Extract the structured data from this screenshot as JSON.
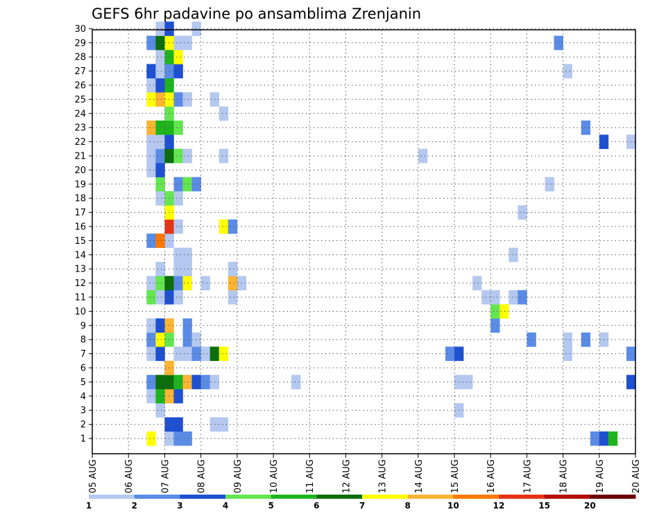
{
  "chart_data": {
    "type": "heatmap",
    "title": "GEFS 6hr padavine po ansamblima Zrenjanin",
    "ylabels": [
      "1",
      "2",
      "3",
      "4",
      "5",
      "6",
      "7",
      "8",
      "9",
      "10",
      "11",
      "12",
      "13",
      "14",
      "15",
      "16",
      "17",
      "18",
      "19",
      "20",
      "21",
      "22",
      "23",
      "24",
      "25",
      "26",
      "27",
      "28",
      "29",
      "30"
    ],
    "xlabels": [
      "05 AUG",
      "06 AUG",
      "07 AUG",
      "08 AUG",
      "09 AUG",
      "10 AUG",
      "11 AUG",
      "12 AUG",
      "13 AUG",
      "14 AUG",
      "15 AUG",
      "16 AUG",
      "17 AUG",
      "18 AUG",
      "19 AUG",
      "20 AUG"
    ],
    "steps_per_day": 4,
    "grid": "dotted",
    "colorbar": {
      "ticks": [
        "1",
        "2",
        "3",
        "4",
        "5",
        "6",
        "7",
        "8",
        "10",
        "12",
        "15",
        "20"
      ],
      "colors": [
        "#b4c8f0",
        "#5a8ce6",
        "#1e50d2",
        "#64e650",
        "#1eb41e",
        "#0a6e0a",
        "#ffff00",
        "#ffb432",
        "#ff7800",
        "#e63214",
        "#b40a0a",
        "#6e0000"
      ]
    },
    "cells": [
      [
        1,
        6,
        7
      ],
      [
        1,
        8,
        1
      ],
      [
        1,
        9,
        2
      ],
      [
        1,
        10,
        2
      ],
      [
        1,
        55,
        2
      ],
      [
        1,
        56,
        3
      ],
      [
        1,
        57,
        5
      ],
      [
        2,
        8,
        3
      ],
      [
        2,
        9,
        3
      ],
      [
        2,
        13,
        1
      ],
      [
        2,
        14,
        1
      ],
      [
        3,
        7,
        1
      ],
      [
        3,
        40,
        1
      ],
      [
        4,
        6,
        1
      ],
      [
        4,
        7,
        5
      ],
      [
        4,
        8,
        8
      ],
      [
        4,
        9,
        3
      ],
      [
        5,
        6,
        2
      ],
      [
        5,
        7,
        6
      ],
      [
        5,
        8,
        6
      ],
      [
        5,
        9,
        5
      ],
      [
        5,
        10,
        8
      ],
      [
        5,
        11,
        3
      ],
      [
        5,
        12,
        2
      ],
      [
        5,
        13,
        1
      ],
      [
        5,
        22,
        1
      ],
      [
        5,
        40,
        1
      ],
      [
        5,
        41,
        1
      ],
      [
        5,
        59,
        3
      ],
      [
        6,
        8,
        8
      ],
      [
        7,
        6,
        1
      ],
      [
        7,
        7,
        3
      ],
      [
        7,
        9,
        1
      ],
      [
        7,
        10,
        1
      ],
      [
        7,
        11,
        2
      ],
      [
        7,
        12,
        1
      ],
      [
        7,
        13,
        6
      ],
      [
        7,
        14,
        7
      ],
      [
        7,
        39,
        2
      ],
      [
        7,
        40,
        3
      ],
      [
        7,
        52,
        1
      ],
      [
        7,
        59,
        2
      ],
      [
        8,
        6,
        2
      ],
      [
        8,
        7,
        7
      ],
      [
        8,
        8,
        4
      ],
      [
        8,
        10,
        2
      ],
      [
        8,
        11,
        1
      ],
      [
        8,
        48,
        2
      ],
      [
        8,
        52,
        1
      ],
      [
        8,
        54,
        2
      ],
      [
        8,
        56,
        1
      ],
      [
        9,
        6,
        1
      ],
      [
        9,
        7,
        3
      ],
      [
        9,
        8,
        8
      ],
      [
        9,
        10,
        2
      ],
      [
        9,
        44,
        2
      ],
      [
        10,
        44,
        4
      ],
      [
        10,
        45,
        7
      ],
      [
        11,
        6,
        4
      ],
      [
        11,
        7,
        1
      ],
      [
        11,
        8,
        3
      ],
      [
        11,
        9,
        1
      ],
      [
        11,
        15,
        1
      ],
      [
        11,
        43,
        1
      ],
      [
        11,
        44,
        1
      ],
      [
        11,
        46,
        1
      ],
      [
        11,
        47,
        2
      ],
      [
        12,
        6,
        1
      ],
      [
        12,
        7,
        4
      ],
      [
        12,
        8,
        6
      ],
      [
        12,
        9,
        2
      ],
      [
        12,
        10,
        7
      ],
      [
        12,
        12,
        1
      ],
      [
        12,
        15,
        8
      ],
      [
        12,
        16,
        1
      ],
      [
        12,
        42,
        1
      ],
      [
        13,
        7,
        1
      ],
      [
        13,
        9,
        1
      ],
      [
        13,
        10,
        1
      ],
      [
        13,
        15,
        1
      ],
      [
        14,
        9,
        1
      ],
      [
        14,
        10,
        1
      ],
      [
        14,
        46,
        1
      ],
      [
        15,
        6,
        2
      ],
      [
        15,
        7,
        9
      ],
      [
        15,
        8,
        1
      ],
      [
        16,
        8,
        10
      ],
      [
        16,
        9,
        1
      ],
      [
        16,
        14,
        7
      ],
      [
        16,
        15,
        2
      ],
      [
        17,
        8,
        7
      ],
      [
        17,
        47,
        1
      ],
      [
        18,
        7,
        1
      ],
      [
        18,
        8,
        4
      ],
      [
        18,
        9,
        1
      ],
      [
        19,
        7,
        4
      ],
      [
        19,
        9,
        2
      ],
      [
        19,
        10,
        4
      ],
      [
        19,
        11,
        2
      ],
      [
        19,
        50,
        1
      ],
      [
        20,
        6,
        1
      ],
      [
        20,
        7,
        3
      ],
      [
        21,
        6,
        1
      ],
      [
        21,
        7,
        2
      ],
      [
        21,
        8,
        6
      ],
      [
        21,
        9,
        4
      ],
      [
        21,
        10,
        1
      ],
      [
        21,
        14,
        1
      ],
      [
        21,
        36,
        1
      ],
      [
        22,
        6,
        1
      ],
      [
        22,
        7,
        1
      ],
      [
        22,
        8,
        3
      ],
      [
        22,
        56,
        3
      ],
      [
        22,
        59,
        1
      ],
      [
        23,
        6,
        8
      ],
      [
        23,
        7,
        5
      ],
      [
        23,
        8,
        5
      ],
      [
        23,
        9,
        4
      ],
      [
        23,
        54,
        2
      ],
      [
        24,
        8,
        4
      ],
      [
        24,
        14,
        1
      ],
      [
        25,
        6,
        7
      ],
      [
        25,
        7,
        8
      ],
      [
        25,
        8,
        7
      ],
      [
        25,
        9,
        2
      ],
      [
        25,
        10,
        1
      ],
      [
        25,
        13,
        1
      ],
      [
        26,
        6,
        1
      ],
      [
        26,
        7,
        3
      ],
      [
        26,
        8,
        5
      ],
      [
        27,
        6,
        3
      ],
      [
        27,
        7,
        1
      ],
      [
        27,
        8,
        2
      ],
      [
        27,
        9,
        3
      ],
      [
        27,
        52,
        1
      ],
      [
        28,
        7,
        1
      ],
      [
        28,
        8,
        5
      ],
      [
        28,
        9,
        7
      ],
      [
        29,
        6,
        2
      ],
      [
        29,
        7,
        6
      ],
      [
        29,
        8,
        7
      ],
      [
        29,
        9,
        1
      ],
      [
        29,
        10,
        1
      ],
      [
        29,
        51,
        2
      ],
      [
        30,
        7,
        1
      ],
      [
        30,
        8,
        3
      ],
      [
        30,
        11,
        1
      ]
    ]
  }
}
